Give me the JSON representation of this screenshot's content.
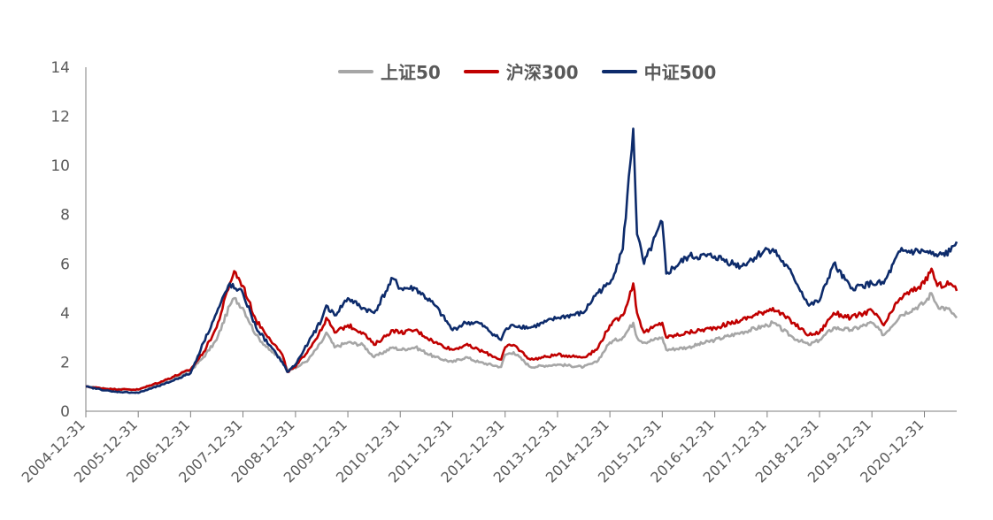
{
  "chart_data": {
    "type": "line",
    "title": "",
    "xlabel": "",
    "ylabel": "",
    "ylim": [
      0,
      14
    ],
    "yticks": [
      "0",
      "2",
      "4",
      "6",
      "8",
      "10",
      "12",
      "14"
    ],
    "xticks": [
      "2004-12-31",
      "2005-12-31",
      "2006-12-31",
      "2007-12-31",
      "2008-12-31",
      "2009-12-31",
      "2010-12-31",
      "2011-12-31",
      "2012-12-31",
      "2013-12-31",
      "2014-12-31",
      "2015-12-31",
      "2016-12-31",
      "2017-12-31",
      "2018-12-31",
      "2019-12-31",
      "2020-12-31"
    ],
    "legend": "top-center",
    "grid": false,
    "x": [
      "2004-12-31",
      "2005-06-30",
      "2005-12-31",
      "2006-06-30",
      "2006-12-31",
      "2007-03-31",
      "2007-06-30",
      "2007-09-30",
      "2007-10-31",
      "2007-12-31",
      "2008-03-31",
      "2008-06-30",
      "2008-09-30",
      "2008-11-04",
      "2008-12-31",
      "2009-03-31",
      "2009-06-30",
      "2009-08-03",
      "2009-09-30",
      "2009-12-31",
      "2010-04-15",
      "2010-07-02",
      "2010-11-10",
      "2010-12-31",
      "2011-04-15",
      "2011-08-31",
      "2011-12-31",
      "2012-03-31",
      "2012-06-30",
      "2012-12-03",
      "2012-12-31",
      "2013-02-28",
      "2013-06-25",
      "2013-12-31",
      "2014-06-30",
      "2014-09-30",
      "2014-12-31",
      "2015-03-31",
      "2015-06-12",
      "2015-07-08",
      "2015-08-26",
      "2015-12-31",
      "2016-01-28",
      "2016-06-30",
      "2016-12-31",
      "2017-06-30",
      "2017-12-31",
      "2018-02-09",
      "2018-06-30",
      "2018-10-18",
      "2018-12-31",
      "2019-04-08",
      "2019-08-06",
      "2019-12-31",
      "2020-03-23",
      "2020-07-15",
      "2020-12-31",
      "2021-02-18",
      "2021-03-31",
      "2021-06-30",
      "2021-08-13"
    ],
    "series": [
      {
        "name": "上证50",
        "color": "#A6A6A6",
        "values": [
          1.0,
          0.9,
          0.88,
          1.2,
          1.65,
          2.2,
          2.9,
          4.3,
          4.6,
          4.2,
          3.1,
          2.5,
          2.1,
          1.7,
          1.75,
          2.1,
          2.8,
          3.2,
          2.6,
          2.8,
          2.7,
          2.2,
          2.6,
          2.5,
          2.6,
          2.2,
          2.0,
          2.2,
          2.0,
          1.8,
          2.3,
          2.4,
          1.8,
          1.9,
          1.8,
          2.0,
          2.8,
          3.0,
          3.6,
          3.0,
          2.8,
          3.0,
          2.5,
          2.6,
          2.9,
          3.2,
          3.5,
          3.6,
          3.0,
          2.7,
          2.9,
          3.4,
          3.3,
          3.6,
          3.1,
          3.9,
          4.4,
          4.8,
          4.3,
          4.1,
          3.8
        ]
      },
      {
        "name": "沪深300",
        "color": "#C00000",
        "values": [
          1.0,
          0.9,
          0.88,
          1.25,
          1.7,
          2.4,
          3.4,
          5.2,
          5.7,
          5.1,
          3.7,
          3.0,
          2.3,
          1.6,
          1.8,
          2.5,
          3.3,
          3.8,
          3.2,
          3.5,
          3.2,
          2.7,
          3.3,
          3.2,
          3.3,
          2.8,
          2.5,
          2.7,
          2.5,
          2.1,
          2.6,
          2.7,
          2.1,
          2.3,
          2.2,
          2.5,
          3.5,
          3.9,
          5.2,
          4.0,
          3.2,
          3.6,
          3.0,
          3.2,
          3.4,
          3.7,
          4.1,
          4.2,
          3.6,
          3.1,
          3.2,
          4.0,
          3.8,
          4.1,
          3.5,
          4.6,
          5.2,
          5.8,
          5.1,
          5.2,
          4.9
        ]
      },
      {
        "name": "中证500",
        "color": "#0D2B6B",
        "values": [
          1.0,
          0.8,
          0.75,
          1.1,
          1.55,
          2.8,
          4.0,
          5.2,
          5.0,
          4.8,
          3.4,
          2.7,
          2.0,
          1.6,
          1.9,
          2.8,
          3.7,
          4.3,
          3.9,
          4.6,
          4.2,
          4.0,
          5.4,
          5.0,
          5.0,
          4.3,
          3.3,
          3.6,
          3.6,
          2.9,
          3.3,
          3.5,
          3.4,
          3.8,
          4.0,
          4.8,
          5.2,
          6.6,
          11.5,
          7.2,
          6.0,
          7.7,
          5.6,
          6.3,
          6.3,
          5.9,
          6.6,
          6.6,
          5.5,
          4.3,
          4.5,
          6.0,
          5.0,
          5.2,
          5.2,
          6.5,
          6.5,
          6.4,
          6.3,
          6.5,
          6.9
        ]
      }
    ]
  }
}
